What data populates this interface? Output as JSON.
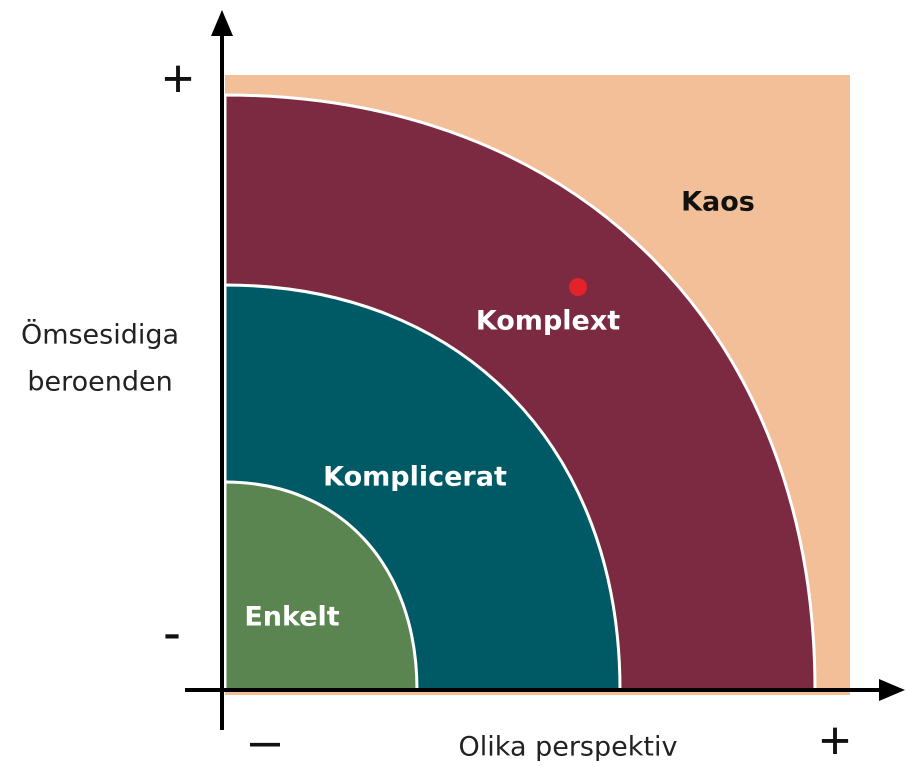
{
  "regions": [
    {
      "label": "Kaos"
    },
    {
      "label": "Komplext"
    },
    {
      "label": "Komplicerat"
    },
    {
      "label": "Enkelt"
    }
  ],
  "axes": {
    "y_label": [
      "Ömsesidiga",
      "beroenden"
    ],
    "x_label": "Olika perspektiv",
    "y_plus": "+",
    "y_minus": "-",
    "x_minus": "–",
    "x_plus": "+"
  }
}
